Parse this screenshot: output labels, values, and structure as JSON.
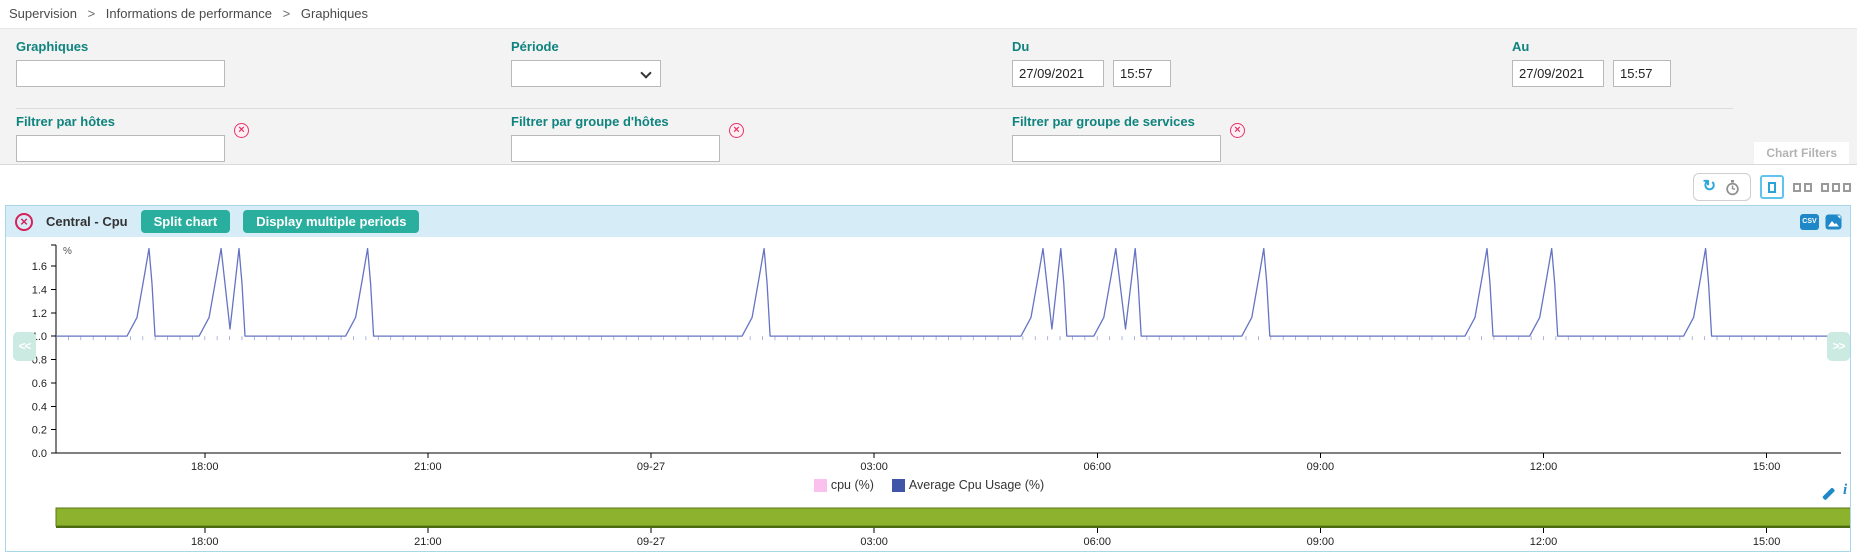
{
  "breadcrumb": {
    "separator": ">",
    "items": [
      "Supervision",
      "Informations de performance",
      "Graphiques"
    ]
  },
  "filters": {
    "graphs": {
      "label": "Graphiques",
      "value": ""
    },
    "period": {
      "label": "Période",
      "value": ""
    },
    "from": {
      "label": "Du",
      "date": "27/09/2021",
      "time": "15:57"
    },
    "to": {
      "label": "Au",
      "date": "27/09/2021",
      "time": "15:57"
    },
    "host": {
      "label": "Filtrer par hôtes",
      "value": ""
    },
    "hostgroup": {
      "label": "Filtrer par groupe d'hôtes",
      "value": ""
    },
    "servicegroup": {
      "label": "Filtrer par groupe de services",
      "value": ""
    },
    "panel_tab": "Chart Filters"
  },
  "chart": {
    "title": "Central - Cpu",
    "split_button": "Split chart",
    "multi_button": "Display multiple periods"
  },
  "icons": {
    "close": "×",
    "clear": "×",
    "refresh": "↻",
    "nav_left": "<<",
    "nav_right": ">>",
    "csv": "CSV",
    "info": "i"
  },
  "chart_data": {
    "type": "line",
    "title": "Central - Cpu",
    "unit": "%",
    "x_start": "09-26 16:00",
    "x_end": "09-27 16:00",
    "x_range_hours": 24,
    "xticks": {
      "hours": [
        2,
        5,
        8,
        11,
        14,
        17,
        20,
        23
      ],
      "labels": [
        "18:00",
        "21:00",
        "09-27",
        "03:00",
        "06:00",
        "09:00",
        "12:00",
        "15:00"
      ]
    },
    "yticks": [
      0.0,
      0.2,
      0.4,
      0.6,
      0.8,
      1.0,
      1.2,
      1.4,
      1.6
    ],
    "ylim": [
      0,
      1.78
    ],
    "grid": false,
    "legend_position": "bottom-center",
    "series": [
      {
        "name": "cpu (%)",
        "color": "#fbc1ee",
        "baseline": 1.0
      },
      {
        "name": "Average Cpu Usage (%)",
        "color": "#6673c4",
        "legend_color": "#4055a8",
        "baseline": 1.0,
        "peak": 1.75,
        "spikes_hours": [
          1.25,
          2.22,
          2.46,
          4.19,
          9.52,
          13.27,
          13.51,
          14.25,
          14.51,
          16.24,
          19.24,
          20.11,
          22.18
        ],
        "spike_times": [
          "17:15",
          "18:13",
          "18:28",
          "20:11",
          "01:31",
          "05:16",
          "05:31",
          "06:15",
          "06:31",
          "08:14",
          "11:14",
          "12:07",
          "14:11"
        ]
      }
    ],
    "brush": {
      "color": "#8db32e",
      "edge_color": "#4c6a12",
      "selection": "full"
    }
  }
}
